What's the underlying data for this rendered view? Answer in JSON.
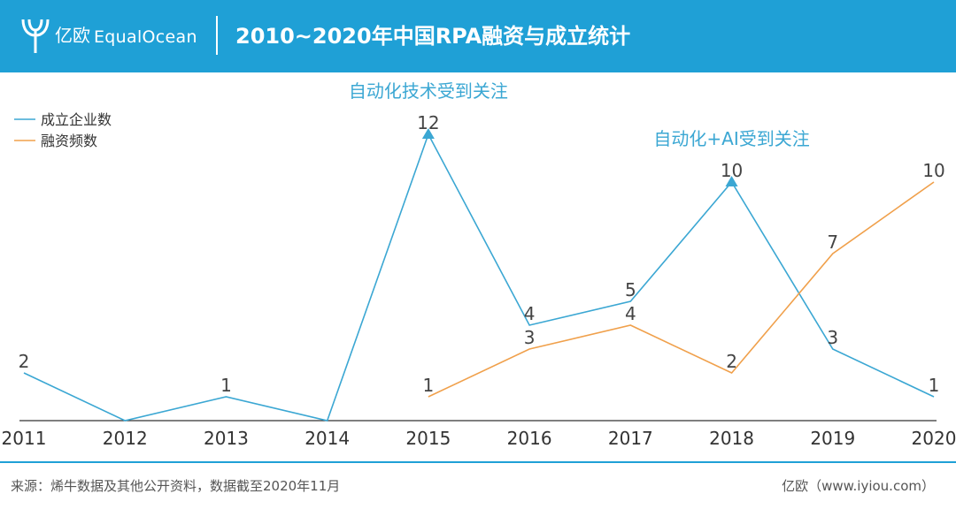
{
  "header": {
    "logo_cn": "亿欧",
    "logo_en": "EqualOcean",
    "title": "2010~2020年中国RPA融资与成立统计"
  },
  "colors": {
    "brand": "#1fa0d6",
    "series_companies": "#3ba7d3",
    "series_financing": "#f0a04b"
  },
  "chart_data": {
    "type": "line",
    "title": "2010~2020年中国RPA融资与成立统计",
    "xlabel": "",
    "ylabel": "",
    "x": [
      "2011",
      "2012",
      "2013",
      "2014",
      "2015",
      "2016",
      "2017",
      "2018",
      "2019",
      "2020"
    ],
    "ylim": [
      0,
      12
    ],
    "grid": false,
    "legend": "top-left",
    "series": [
      {
        "name": "成立企业数",
        "color": "#3ba7d3",
        "values": [
          2,
          0,
          1,
          0,
          12,
          4,
          5,
          10,
          3,
          1
        ],
        "labels": [
          "2",
          "",
          "1",
          "",
          "12",
          "4",
          "5",
          "10",
          "3",
          "1"
        ]
      },
      {
        "name": "融资频数",
        "color": "#f0a04b",
        "values": [
          null,
          null,
          null,
          null,
          1,
          3,
          4,
          2,
          7,
          10
        ],
        "labels": [
          "",
          "",
          "",
          "",
          "1",
          "3",
          "4",
          "2",
          "7",
          "10"
        ]
      }
    ],
    "annotations": [
      {
        "text": "自动化技术受到关注",
        "x": "2015",
        "y": 12
      },
      {
        "text": "自动化+AI受到关注",
        "x": "2018",
        "y": 10
      }
    ]
  },
  "footer": {
    "source": "来源：烯牛数据及其他公开资料，数据截至2020年11月",
    "credit": "亿欧（www.iyiou.com）"
  }
}
